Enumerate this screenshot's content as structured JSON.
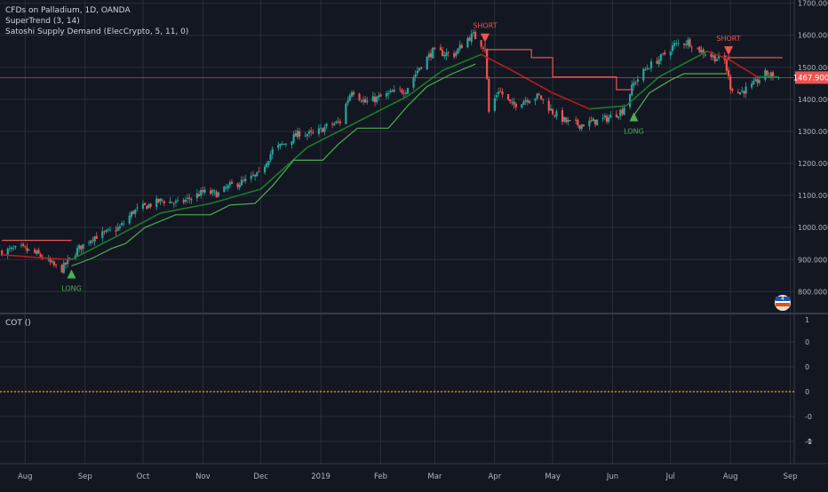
{
  "header": {
    "symbol_line": "CFDs on Palladium, 1D, OANDA",
    "indicator1": "SuperTrend (3, 14)",
    "indicator2": "Satoshi Supply Demand (ElecCrypto, 5, 11, 0)"
  },
  "subpanel": {
    "label": "COT ()"
  },
  "price_tag": {
    "value": "1467.900",
    "color": "#ef5350"
  },
  "colors": {
    "background": "#131722",
    "grid": "#2a2e39",
    "up": "#26a69a",
    "down": "#ef5350",
    "supertrend_up": "#4caf50",
    "supertrend_down": "#ef5350",
    "ema_green": "#1b7a2a",
    "ema_red": "#b71c1c",
    "cot_line": "#ff9800"
  },
  "chart_data": [
    {
      "type": "candlestick",
      "title": "CFDs on Palladium, 1D, OANDA",
      "ylim": [
        740,
        1710
      ],
      "y_ticks": [
        "800.000",
        "900.000",
        "1000.000",
        "1100.000",
        "1200.000",
        "1300.000",
        "1400.000",
        "1500.000",
        "1600.000",
        "1700.000"
      ],
      "x_ticks": [
        "Aug",
        "Sep",
        "Oct",
        "Nov",
        "Dec",
        "2019",
        "Feb",
        "Mar",
        "Apr",
        "May",
        "Jun",
        "Jul",
        "Aug",
        "Sep"
      ],
      "close_path": [
        {
          "x": "2018-07-20",
          "y": 925
        },
        {
          "x": "2018-07-30",
          "y": 935
        },
        {
          "x": "2018-08-08",
          "y": 915
        },
        {
          "x": "2018-08-16",
          "y": 880
        },
        {
          "x": "2018-08-20",
          "y": 870
        },
        {
          "x": "2018-08-28",
          "y": 930
        },
        {
          "x": "2018-09-05",
          "y": 970
        },
        {
          "x": "2018-09-13",
          "y": 985
        },
        {
          "x": "2018-09-19",
          "y": 1000
        },
        {
          "x": "2018-09-26",
          "y": 1050
        },
        {
          "x": "2018-10-04",
          "y": 1070
        },
        {
          "x": "2018-10-11",
          "y": 1085
        },
        {
          "x": "2018-10-19",
          "y": 1075
        },
        {
          "x": "2018-10-25",
          "y": 1090
        },
        {
          "x": "2018-11-01",
          "y": 1110
        },
        {
          "x": "2018-11-09",
          "y": 1105
        },
        {
          "x": "2018-11-15",
          "y": 1130
        },
        {
          "x": "2018-11-23",
          "y": 1145
        },
        {
          "x": "2018-11-30",
          "y": 1165
        },
        {
          "x": "2018-12-07",
          "y": 1240
        },
        {
          "x": "2018-12-14",
          "y": 1265
        },
        {
          "x": "2018-12-21",
          "y": 1295
        },
        {
          "x": "2018-12-28",
          "y": 1290
        },
        {
          "x": "2019-01-04",
          "y": 1315
        },
        {
          "x": "2019-01-11",
          "y": 1330
        },
        {
          "x": "2019-01-14",
          "y": 1385
        },
        {
          "x": "2019-01-17",
          "y": 1430
        },
        {
          "x": "2019-01-24",
          "y": 1390
        },
        {
          "x": "2019-01-31",
          "y": 1405
        },
        {
          "x": "2019-02-07",
          "y": 1420
        },
        {
          "x": "2019-02-14",
          "y": 1430
        },
        {
          "x": "2019-02-21",
          "y": 1500
        },
        {
          "x": "2019-02-28",
          "y": 1550
        },
        {
          "x": "2019-03-04",
          "y": 1545
        },
        {
          "x": "2019-03-11",
          "y": 1540
        },
        {
          "x": "2019-03-18",
          "y": 1590
        },
        {
          "x": "2019-03-21",
          "y": 1600
        },
        {
          "x": "2019-03-27",
          "y": 1560
        },
        {
          "x": "2019-03-29",
          "y": 1360
        },
        {
          "x": "2019-04-03",
          "y": 1430
        },
        {
          "x": "2019-04-10",
          "y": 1380
        },
        {
          "x": "2019-04-17",
          "y": 1400
        },
        {
          "x": "2019-04-24",
          "y": 1410
        },
        {
          "x": "2019-05-01",
          "y": 1360
        },
        {
          "x": "2019-05-08",
          "y": 1330
        },
        {
          "x": "2019-05-15",
          "y": 1320
        },
        {
          "x": "2019-05-22",
          "y": 1330
        },
        {
          "x": "2019-05-29",
          "y": 1340
        },
        {
          "x": "2019-06-06",
          "y": 1365
        },
        {
          "x": "2019-06-12",
          "y": 1450
        },
        {
          "x": "2019-06-19",
          "y": 1500
        },
        {
          "x": "2019-06-26",
          "y": 1530
        },
        {
          "x": "2019-07-03",
          "y": 1570
        },
        {
          "x": "2019-07-10",
          "y": 1580
        },
        {
          "x": "2019-07-17",
          "y": 1550
        },
        {
          "x": "2019-07-24",
          "y": 1530
        },
        {
          "x": "2019-07-29",
          "y": 1520
        },
        {
          "x": "2019-08-01",
          "y": 1440
        },
        {
          "x": "2019-08-05",
          "y": 1420
        },
        {
          "x": "2019-08-12",
          "y": 1440
        },
        {
          "x": "2019-08-19",
          "y": 1480
        },
        {
          "x": "2019-08-26",
          "y": 1468
        }
      ],
      "supertrend": {
        "label": "SuperTrend (3, 14)",
        "down_segments": [
          [
            {
              "x": "2018-07-20",
              "y": 960
            },
            {
              "x": "2018-08-25",
              "y": 960
            }
          ],
          [
            {
              "x": "2019-03-27",
              "y": 1555
            },
            {
              "x": "2019-04-20",
              "y": 1555
            },
            {
              "x": "2019-04-20",
              "y": 1530
            },
            {
              "x": "2019-05-01",
              "y": 1530
            },
            {
              "x": "2019-05-01",
              "y": 1470
            },
            {
              "x": "2019-06-03",
              "y": 1470
            },
            {
              "x": "2019-06-03",
              "y": 1430
            },
            {
              "x": "2019-06-12",
              "y": 1430
            }
          ],
          [
            {
              "x": "2019-07-31",
              "y": 1530
            },
            {
              "x": "2019-08-28",
              "y": 1530
            }
          ]
        ],
        "up_segments": [
          [
            {
              "x": "2018-08-25",
              "y": 880
            },
            {
              "x": "2018-09-05",
              "y": 905
            },
            {
              "x": "2018-09-15",
              "y": 935
            },
            {
              "x": "2018-09-22",
              "y": 950
            },
            {
              "x": "2018-10-02",
              "y": 1000
            },
            {
              "x": "2018-10-18",
              "y": 1040
            },
            {
              "x": "2018-11-05",
              "y": 1040
            },
            {
              "x": "2018-11-15",
              "y": 1070
            },
            {
              "x": "2018-11-28",
              "y": 1075
            },
            {
              "x": "2018-12-07",
              "y": 1130
            },
            {
              "x": "2018-12-18",
              "y": 1210
            },
            {
              "x": "2019-01-02",
              "y": 1210
            },
            {
              "x": "2019-01-10",
              "y": 1260
            },
            {
              "x": "2019-01-20",
              "y": 1310
            },
            {
              "x": "2019-02-05",
              "y": 1310
            },
            {
              "x": "2019-02-15",
              "y": 1380
            },
            {
              "x": "2019-02-25",
              "y": 1440
            },
            {
              "x": "2019-03-10",
              "y": 1480
            },
            {
              "x": "2019-03-22",
              "y": 1510
            }
          ],
          [
            {
              "x": "2019-06-12",
              "y": 1350
            },
            {
              "x": "2019-06-20",
              "y": 1420
            },
            {
              "x": "2019-07-01",
              "y": 1460
            },
            {
              "x": "2019-07-08",
              "y": 1480
            },
            {
              "x": "2019-07-30",
              "y": 1480
            }
          ]
        ]
      },
      "moving_average": [
        {
          "x": "2018-07-20",
          "y": 915
        },
        {
          "x": "2018-08-10",
          "y": 905
        },
        {
          "x": "2018-08-25",
          "y": 900
        },
        {
          "x": "2018-09-15",
          "y": 965
        },
        {
          "x": "2018-10-10",
          "y": 1045
        },
        {
          "x": "2018-11-05",
          "y": 1075
        },
        {
          "x": "2018-12-01",
          "y": 1120
        },
        {
          "x": "2018-12-25",
          "y": 1250
        },
        {
          "x": "2019-01-20",
          "y": 1330
        },
        {
          "x": "2019-02-15",
          "y": 1410
        },
        {
          "x": "2019-03-05",
          "y": 1490
        },
        {
          "x": "2019-03-25",
          "y": 1540
        },
        {
          "x": "2019-04-10",
          "y": 1490
        },
        {
          "x": "2019-05-01",
          "y": 1420
        },
        {
          "x": "2019-05-20",
          "y": 1370
        },
        {
          "x": "2019-06-08",
          "y": 1380
        },
        {
          "x": "2019-06-25",
          "y": 1470
        },
        {
          "x": "2019-07-20",
          "y": 1550
        },
        {
          "x": "2019-07-31",
          "y": 1525
        },
        {
          "x": "2019-08-15",
          "y": 1470
        },
        {
          "x": "2019-08-26",
          "y": 1470
        }
      ],
      "annotations": [
        {
          "text": "LONG",
          "x": "2018-08-25",
          "y": 880,
          "direction": "up"
        },
        {
          "text": "SHORT",
          "x": "2019-03-27",
          "y": 1600,
          "direction": "down"
        },
        {
          "text": "LONG",
          "x": "2019-06-12",
          "y": 1370,
          "direction": "up"
        },
        {
          "text": "SHORT",
          "x": "2019-07-31",
          "y": 1560,
          "direction": "down"
        }
      ],
      "last_price": 1467.9
    },
    {
      "type": "line",
      "title": "COT ()",
      "y_ticks": [
        "1",
        "0",
        "0",
        "0",
        "-0",
        "-0",
        "-1"
      ],
      "series": [
        {
          "values": [
            0,
            0
          ]
        }
      ]
    }
  ]
}
